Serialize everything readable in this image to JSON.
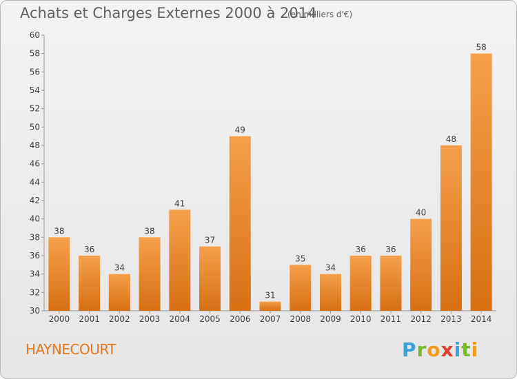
{
  "title": "Achats et Charges Externes 2000 à 2014",
  "subtitle": "(en milliers d'€)",
  "commune": "HAYNECOURT",
  "logo": {
    "letters": [
      "P",
      "r",
      "o",
      "x",
      "i",
      "t",
      "i"
    ],
    "colors": [
      "#3aa0d8",
      "#7ab82e",
      "#f29a1c",
      "#e53b2d",
      "#3aa0d8",
      "#7ab82e",
      "#f29a1c"
    ]
  },
  "colors": {
    "bar_top": "#f6a04c",
    "bar_bottom": "#d66f12",
    "accent": "#e2781f"
  },
  "chart_data": {
    "type": "bar",
    "categories": [
      "2000",
      "2001",
      "2002",
      "2003",
      "2004",
      "2005",
      "2006",
      "2007",
      "2008",
      "2009",
      "2010",
      "2011",
      "2012",
      "2013",
      "2014"
    ],
    "values": [
      38,
      36,
      34,
      38,
      41,
      37,
      49,
      31,
      35,
      34,
      36,
      36,
      40,
      48,
      58
    ],
    "ylim": [
      30,
      60
    ],
    "ytick_step": 2,
    "grid": false
  }
}
